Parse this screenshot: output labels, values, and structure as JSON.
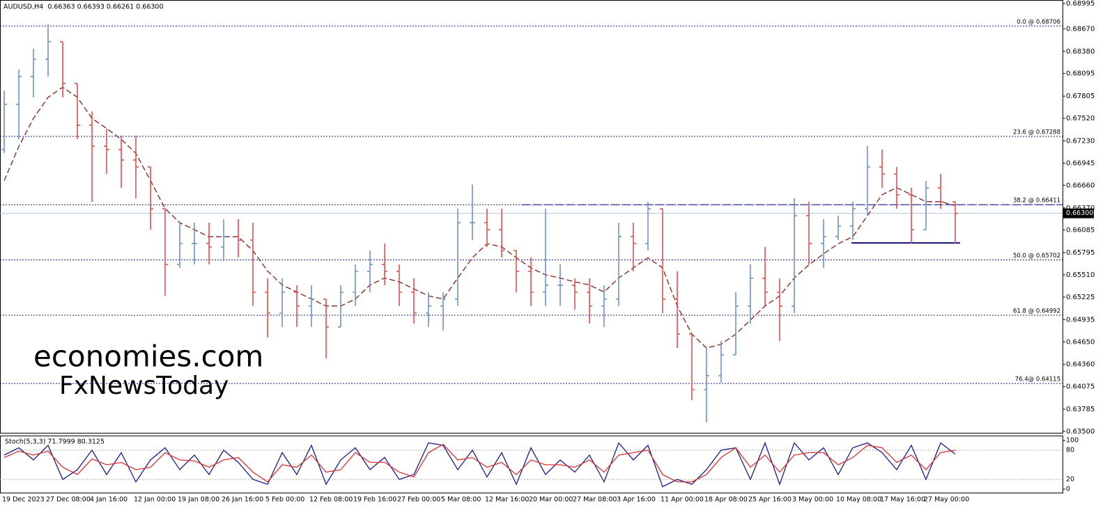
{
  "chart_data": {
    "type": "ohlc",
    "title": "AUDUSD,H4  0.66363 0.66393 0.66261 0.66300",
    "categories": [
      "19 Dec 2023",
      null,
      null,
      "27 Dec 08:00",
      null,
      null,
      "4 Jan 16:00",
      null,
      null,
      "12 Jan 00:00",
      null,
      null,
      "19 Jan 08:00",
      null,
      null,
      "26 Jan 16:00",
      null,
      null,
      "5 Feb 00:00",
      null,
      null,
      "12 Feb 08:00",
      null,
      null,
      "19 Feb 16:00",
      null,
      null,
      "27 Feb 00:00",
      null,
      null,
      "5 Mar 08:00",
      null,
      null,
      "12 Mar 16:00",
      null,
      null,
      "20 Mar 00:00",
      null,
      null,
      "27 Mar 08:00",
      null,
      null,
      "3 Apr 16:00",
      null,
      null,
      "11 Apr 00:00",
      null,
      null,
      "18 Apr 08:00",
      null,
      null,
      "25 Apr 16:00",
      null,
      null,
      "3 May 00:00",
      null,
      null,
      "10 May 08:00",
      null,
      null,
      "17 May 16:00",
      null,
      null,
      "27 May 00:00",
      null,
      null
    ],
    "open": [
      0.67119,
      0.677,
      0.68057,
      0.6828,
      0.68504,
      0.67968,
      0.67432,
      0.67163,
      0.67119,
      0.66985,
      0.66896,
      0.66359,
      0.65644,
      0.65913,
      0.65913,
      0.65868,
      0.66002,
      0.65957,
      0.65287,
      0.65019,
      0.65287,
      0.65109,
      0.65198,
      0.64841,
      0.65287,
      0.65555,
      0.65644,
      0.65555,
      0.65287,
      0.65019,
      0.65109,
      0.65198,
      0.66181,
      0.66181,
      0.66091,
      0.65823,
      0.65555,
      0.65287,
      0.65377,
      0.65377,
      0.65287,
      0.65109,
      0.65198,
      0.66002,
      0.65913,
      0.66359,
      0.65198,
      0.64751,
      0.64036,
      0.64215,
      0.64483,
      0.65109,
      0.65466,
      0.65287,
      0.65109,
      0.6627,
      0.65913,
      0.66002,
      0.66136,
      0.66359,
      0.66896,
      0.66806,
      0.66538,
      0.66091,
      0.66628,
      0.66449
    ],
    "high": [
      0.67878,
      0.68146,
      0.68414,
      0.68727,
      0.68504,
      0.67968,
      0.6761,
      0.67387,
      0.67298,
      0.67298,
      0.66896,
      0.66359,
      0.66181,
      0.66181,
      0.66181,
      0.66225,
      0.66225,
      0.66181,
      0.65466,
      0.65466,
      0.65377,
      0.65377,
      0.65198,
      0.65377,
      0.65644,
      0.65823,
      0.65913,
      0.65644,
      0.65466,
      0.65287,
      0.65287,
      0.66359,
      0.66672,
      0.66359,
      0.66359,
      0.65823,
      0.65734,
      0.66359,
      0.65644,
      0.65466,
      0.65466,
      0.65377,
      0.66181,
      0.66181,
      0.66449,
      0.66359,
      0.65555,
      0.64751,
      0.64572,
      0.64662,
      0.65287,
      0.65644,
      0.65868,
      0.65466,
      0.66494,
      0.66449,
      0.66225,
      0.6627,
      0.66449,
      0.67163,
      0.67119,
      0.66896,
      0.66628,
      0.66717,
      0.66806,
      0.66449
    ],
    "low": [
      0.67074,
      0.67253,
      0.67789,
      0.68057,
      0.67789,
      0.67253,
      0.66449,
      0.66806,
      0.66628,
      0.66494,
      0.66091,
      0.65243,
      0.656,
      0.65644,
      0.65644,
      0.65689,
      0.65734,
      0.65109,
      0.64707,
      0.64841,
      0.64841,
      0.64841,
      0.64438,
      0.64841,
      0.65109,
      0.65287,
      0.65377,
      0.65109,
      0.64885,
      0.64841,
      0.64796,
      0.65109,
      0.65957,
      0.65868,
      0.65734,
      0.65287,
      0.65109,
      0.65109,
      0.65109,
      0.65064,
      0.64885,
      0.64841,
      0.65109,
      0.65555,
      0.65823,
      0.65019,
      0.64572,
      0.63902,
      0.63616,
      0.64126,
      0.64483,
      0.64885,
      0.65109,
      0.64662,
      0.65019,
      0.65644,
      0.656,
      0.65957,
      0.65957,
      0.6627,
      0.66628,
      0.66359,
      0.65913,
      0.66091,
      0.66359,
      0.65913
    ],
    "close": [
      0.677,
      0.68057,
      0.6828,
      0.68504,
      0.67968,
      0.67432,
      0.67163,
      0.67119,
      0.66985,
      0.66896,
      0.66359,
      0.65644,
      0.65913,
      0.65913,
      0.65868,
      0.66002,
      0.65957,
      0.65287,
      0.65019,
      0.65287,
      0.65109,
      0.65198,
      0.64841,
      0.65287,
      0.65555,
      0.65644,
      0.65555,
      0.65287,
      0.65019,
      0.65109,
      0.65198,
      0.66181,
      0.66181,
      0.66091,
      0.65823,
      0.65555,
      0.65287,
      0.65377,
      0.65377,
      0.65287,
      0.65109,
      0.65198,
      0.66002,
      0.65913,
      0.66359,
      0.65198,
      0.64751,
      0.64036,
      0.64215,
      0.64483,
      0.65109,
      0.65466,
      0.65287,
      0.65109,
      0.6627,
      0.65913,
      0.66002,
      0.66136,
      0.66359,
      0.66896,
      0.66806,
      0.66538,
      0.66091,
      0.66628,
      0.66449,
      0.663
    ],
    "up_color": "#6f93c4",
    "down_color": "#e0504f",
    "ylim": [
      0.635,
      0.68995
    ],
    "yticks": [
      0.68995,
      {
        "value": 0.6867,
        "label": "0.68670"
      },
      {
        "value": 0.6838,
        "label": "0.68380"
      },
      0.68095,
      0.67805,
      {
        "value": 0.6752,
        "label": "0.67520"
      },
      {
        "value": 0.6723,
        "label": "0.67230"
      },
      0.66945,
      {
        "value": 0.6666,
        "label": "0.66660"
      },
      {
        "value": 0.6637,
        "label": "0.66370"
      },
      0.66085,
      0.65795,
      {
        "value": 0.6551,
        "label": "0.65510"
      },
      0.65225,
      0.64935,
      {
        "value": 0.6465,
        "label": "0.64650"
      },
      {
        "value": 0.6436,
        "label": "0.64360"
      },
      0.64075,
      0.63785,
      {
        "value": 0.635,
        "label": "0.63500"
      }
    ],
    "moving_average": {
      "color": "#8b1a1a",
      "values": [
        0.6672,
        0.6716,
        0.6752,
        0.6779,
        0.6792,
        0.6779,
        0.6752,
        0.6739,
        0.6725,
        0.6707,
        0.6672,
        0.6636,
        0.6618,
        0.6609,
        0.66,
        0.66,
        0.66,
        0.6582,
        0.6556,
        0.6538,
        0.6529,
        0.652,
        0.6511,
        0.6511,
        0.652,
        0.6538,
        0.6547,
        0.6542,
        0.6533,
        0.6524,
        0.652,
        0.6547,
        0.6573,
        0.6591,
        0.6587,
        0.6573,
        0.656,
        0.6551,
        0.6547,
        0.6542,
        0.6538,
        0.6529,
        0.6547,
        0.656,
        0.6573,
        0.656,
        0.6511,
        0.6475,
        0.6457,
        0.6462,
        0.6475,
        0.6493,
        0.6511,
        0.6524,
        0.6547,
        0.6564,
        0.6578,
        0.6591,
        0.66,
        0.6627,
        0.6654,
        0.6663,
        0.6654,
        0.6645,
        0.6645,
        0.664
      ]
    },
    "current_price": {
      "value": 0.663,
      "label": "0.66300"
    },
    "annotations": [
      {
        "label": "0.0 @ 0.68706",
        "value": 0.68706
      },
      {
        "label": "23.6 @ 0.67288",
        "value": 0.67288
      },
      {
        "label": "38.2 @ 0.66411",
        "value": 0.66411
      },
      {
        "label": "50.0 @ 0.65702",
        "value": 0.65702
      },
      {
        "label": "61.8 @ 0.64992",
        "value": 0.64992
      },
      {
        "label": "76.4@ 0.64115",
        "value": 0.64115
      }
    ],
    "support": 0.6592,
    "watermark": [
      "economies.com",
      "FxNewsToday"
    ],
    "indicator": {
      "type": "line",
      "title": "Stoch(5,3,3) 71.7999 80.3125",
      "ylim": [
        0,
        100
      ],
      "yticks": [
        0,
        20,
        80,
        100
      ],
      "series": [
        {
          "color": "#1a1a8c",
          "values": [
            70,
            85,
            60,
            90,
            20,
            40,
            80,
            30,
            75,
            15,
            60,
            85,
            40,
            70,
            30,
            80,
            55,
            20,
            10,
            75,
            30,
            90,
            10,
            60,
            85,
            40,
            65,
            20,
            30,
            95,
            90,
            40,
            80,
            25,
            75,
            10,
            85,
            30,
            60,
            35,
            70,
            15,
            95,
            60,
            90,
            5,
            20,
            10,
            40,
            80,
            85,
            20,
            95,
            10,
            95,
            60,
            85,
            30,
            85,
            95,
            75,
            40,
            90,
            20,
            95,
            72
          ]
        },
        {
          "color": "#e03030",
          "values": [
            65,
            78,
            70,
            78,
            45,
            30,
            62,
            50,
            55,
            40,
            45,
            75,
            60,
            58,
            45,
            60,
            65,
            35,
            15,
            50,
            45,
            70,
            35,
            40,
            75,
            55,
            55,
            35,
            25,
            75,
            92,
            60,
            65,
            45,
            55,
            30,
            60,
            50,
            50,
            45,
            60,
            35,
            70,
            75,
            80,
            30,
            15,
            15,
            30,
            65,
            85,
            45,
            70,
            35,
            70,
            75,
            75,
            50,
            65,
            90,
            85,
            55,
            70,
            40,
            75,
            80
          ]
        }
      ]
    }
  }
}
